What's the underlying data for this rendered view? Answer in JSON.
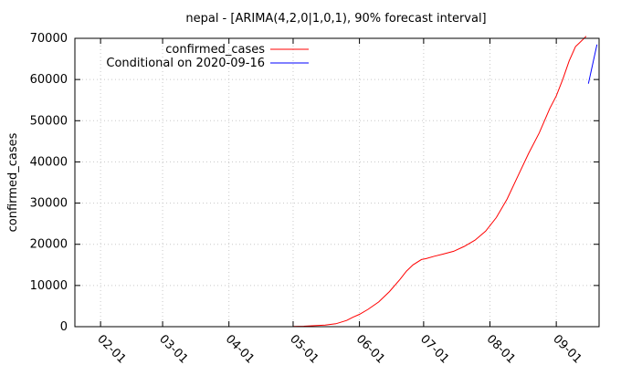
{
  "chart_data": {
    "type": "line",
    "title": "nepal -  [ARIMA(4,2,0|1,0,1), 90% forecast interval]",
    "xlabel": "",
    "ylabel": "confirmed_cases",
    "ylim": [
      0,
      70000
    ],
    "yticks": [
      0,
      10000,
      20000,
      30000,
      40000,
      50000,
      60000,
      70000
    ],
    "xlim_days": [
      -12,
      233
    ],
    "xticks": [
      {
        "day": 0,
        "label": "02-01"
      },
      {
        "day": 29,
        "label": "03-01"
      },
      {
        "day": 60,
        "label": "04-01"
      },
      {
        "day": 90,
        "label": "05-01"
      },
      {
        "day": 121,
        "label": "06-01"
      },
      {
        "day": 151,
        "label": "07-01"
      },
      {
        "day": 182,
        "label": "08-01"
      },
      {
        "day": 213,
        "label": "09-01"
      }
    ],
    "grid": true,
    "legend_position": "top-left",
    "x_units": "days since 2020-02-01",
    "series": [
      {
        "name": "confirmed_cases",
        "color": "#ff0000",
        "x": [
          90,
          95,
          100,
          105,
          110,
          115,
          118,
          121,
          125,
          130,
          135,
          140,
          143,
          146,
          150,
          152,
          156,
          160,
          165,
          170,
          175,
          180,
          185,
          190,
          195,
          200,
          205,
          210,
          213,
          216,
          219,
          222,
          225,
          227
        ],
        "y": [
          50,
          100,
          250,
          400,
          700,
          1500,
          2300,
          3000,
          4200,
          6000,
          8500,
          11500,
          13500,
          15000,
          16300,
          16500,
          17100,
          17600,
          18300,
          19500,
          21000,
          23200,
          26500,
          31000,
          36500,
          42000,
          47000,
          53000,
          56000,
          60000,
          64500,
          68000,
          69500,
          70500
        ]
      },
      {
        "name": "Conditional on 2020-09-16",
        "color": "#0000ff",
        "x": [
          228,
          232
        ],
        "y": [
          59000,
          68500
        ]
      }
    ]
  }
}
